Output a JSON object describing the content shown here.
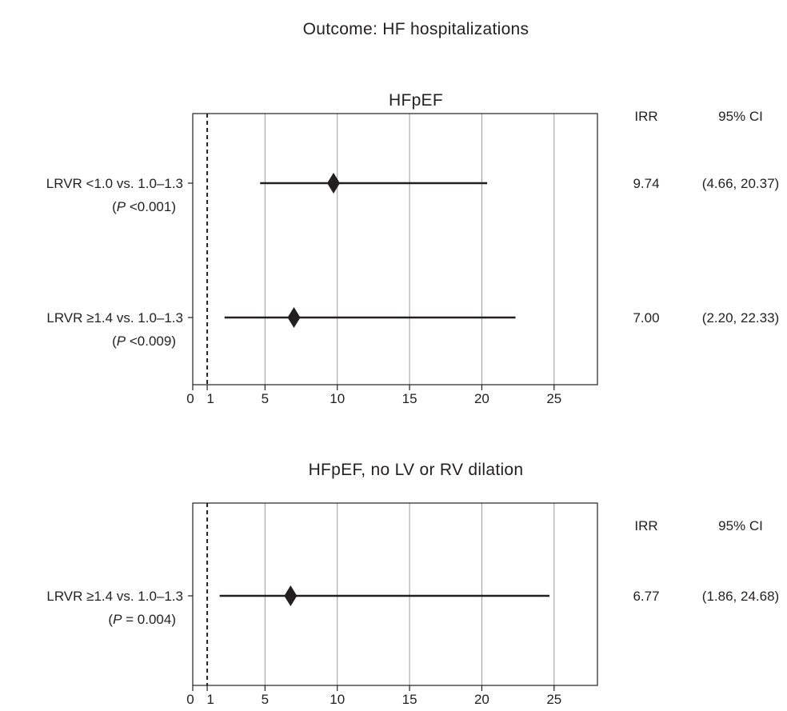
{
  "title": "Outcome: HF hospitalizations",
  "chart_data": [
    {
      "type": "forest",
      "title": "HFpEF",
      "xlim": [
        0,
        28
      ],
      "xticks": [
        0,
        1,
        5,
        10,
        15,
        20,
        25
      ],
      "xtick_labels": [
        "0",
        "1",
        "5",
        "10",
        "15",
        "20",
        "25"
      ],
      "reference_line": 1,
      "grid": "vertical",
      "col_headers": {
        "est": "IRR",
        "ci": "95% CI"
      },
      "rows": [
        {
          "label": "LRVR <1.0 vs. 1.0–1.3",
          "p_prefix": "(",
          "p_letter": "P",
          "p_value": " <0.001)",
          "est": 9.74,
          "lo": 4.66,
          "hi": 20.37,
          "est_text": "9.74",
          "ci_text": "(4.66, 20.37)"
        },
        {
          "label": "LRVR ≥1.4 vs. 1.0–1.3",
          "p_prefix": "(",
          "p_letter": "P",
          "p_value": " <0.009)",
          "est": 7.0,
          "lo": 2.2,
          "hi": 22.33,
          "est_text": "7.00",
          "ci_text": "(2.20, 22.33)"
        }
      ]
    },
    {
      "type": "forest",
      "title": "HFpEF, no LV or RV dilation",
      "xlim": [
        0,
        28
      ],
      "xticks": [
        0,
        1,
        5,
        10,
        15,
        20,
        25
      ],
      "xtick_labels": [
        "0",
        "1",
        "5",
        "10",
        "15",
        "20",
        "25"
      ],
      "reference_line": 1,
      "grid": "vertical",
      "col_headers": {
        "est": "IRR",
        "ci": "95% CI"
      },
      "rows": [
        {
          "label": "LRVR ≥1.4 vs. 1.0–1.3",
          "p_prefix": "(",
          "p_letter": "P",
          "p_value": " = 0.004)",
          "est": 6.77,
          "lo": 1.86,
          "hi": 24.68,
          "est_text": "6.77",
          "ci_text": "(1.86, 24.68)"
        }
      ]
    }
  ]
}
